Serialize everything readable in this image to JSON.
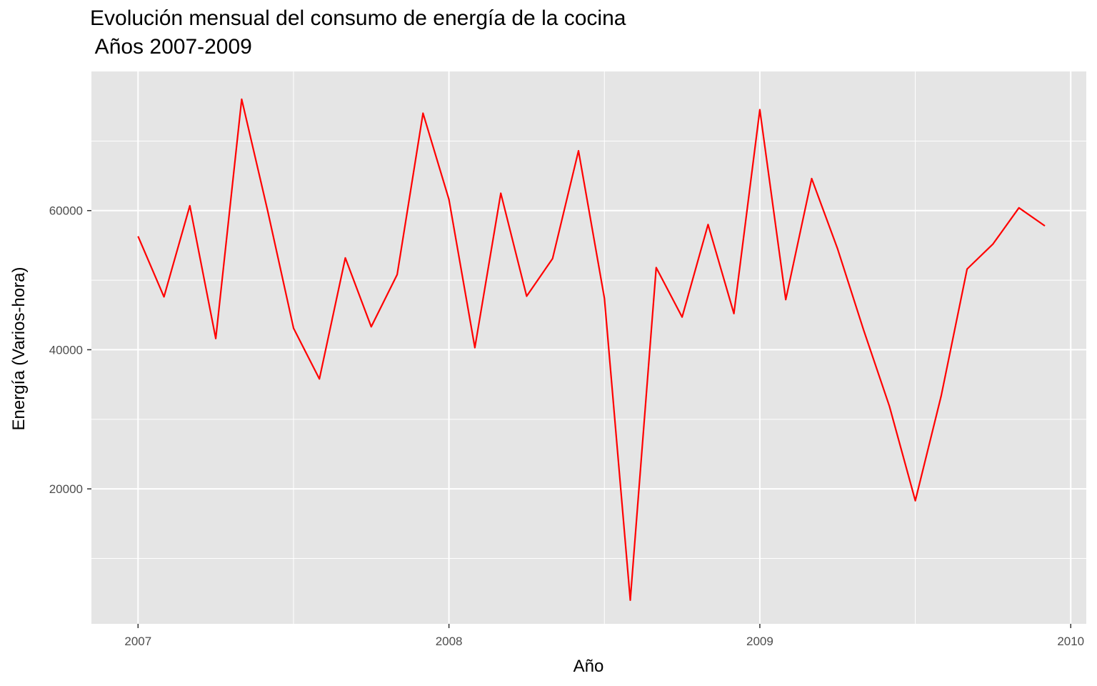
{
  "chart_data": {
    "type": "line",
    "title": "Evolución mensual del consumo de energía de la cocina",
    "subtitle": " Años 2007-2009",
    "xlabel": "Año",
    "ylabel": "Energía (Varios-hora)",
    "x_ticks": [
      "2007",
      "2008",
      "2009",
      "2010"
    ],
    "y_ticks": [
      "20000",
      "40000",
      "60000"
    ],
    "xlim": [
      2006.85,
      2010.05
    ],
    "ylim": [
      600,
      80000
    ],
    "grid": true,
    "line_color": "#ff0000",
    "panel_color": "#e5e5e5",
    "x": [
      "2007-01",
      "2007-02",
      "2007-03",
      "2007-04",
      "2007-05",
      "2007-06",
      "2007-07",
      "2007-08",
      "2007-09",
      "2007-10",
      "2007-11",
      "2007-12",
      "2008-01",
      "2008-02",
      "2008-03",
      "2008-04",
      "2008-05",
      "2008-06",
      "2008-07",
      "2008-08",
      "2008-09",
      "2008-10",
      "2008-11",
      "2008-12",
      "2009-01",
      "2009-02",
      "2009-03",
      "2009-04",
      "2009-05",
      "2009-06",
      "2009-07",
      "2009-08",
      "2009-09",
      "2009-10",
      "2009-11",
      "2009-12"
    ],
    "values": [
      56300,
      47600,
      60700,
      41600,
      76000,
      60000,
      43100,
      35800,
      53200,
      43300,
      50800,
      74000,
      61600,
      40300,
      62500,
      47700,
      53100,
      68600,
      47400,
      4000,
      51800,
      44700,
      58000,
      45200,
      74500,
      47200,
      64600,
      54500,
      42900,
      31900,
      18300,
      33400,
      51600,
      55200,
      60400,
      57800
    ]
  }
}
